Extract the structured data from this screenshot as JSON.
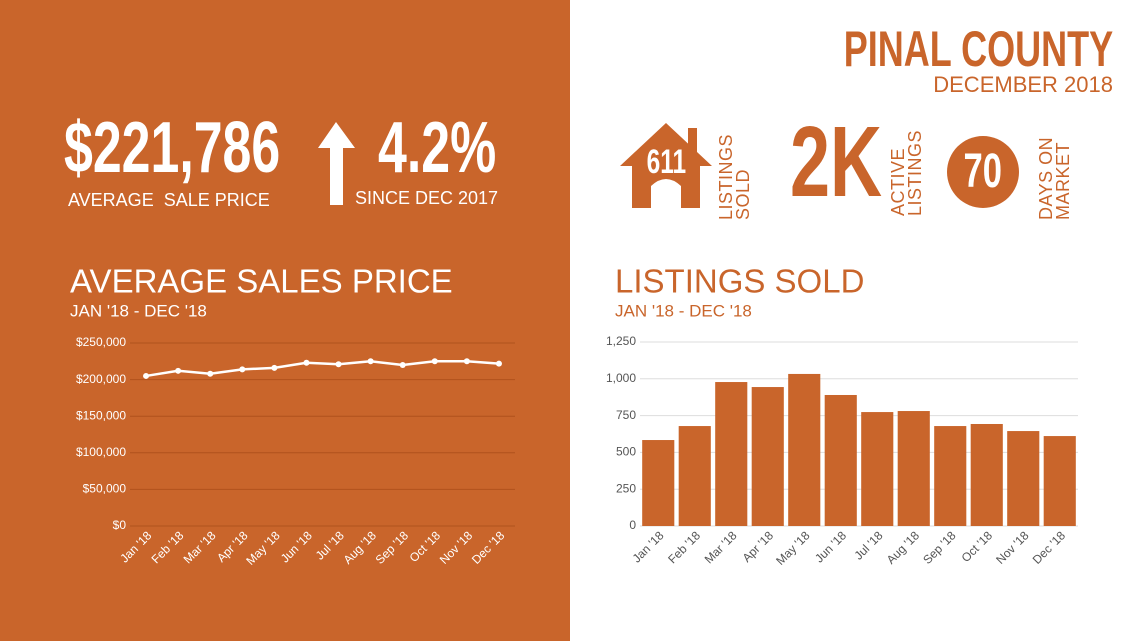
{
  "header": {
    "title": "PINAL COUNTY",
    "subtitle": "DECEMBER 2018"
  },
  "stats": {
    "avg_price": "$221,786",
    "avg_price_label": "AVERAGE  SALE PRICE",
    "change": "4.2%",
    "change_label": "SINCE DEC 2017",
    "listings_sold": "611",
    "listings_sold_label": "LISTINGS SOLD",
    "active": "2K",
    "active_label": "ACTIVE LISTINGS",
    "days": "70",
    "days_label": "DAYS ON MARKET"
  },
  "chart_data": [
    {
      "type": "line",
      "title": "AVERAGE SALES PRICE",
      "subtitle": "JAN '18 - DEC '18",
      "categories": [
        "Jan '18",
        "Feb '18",
        "Mar '18",
        "Apr '18",
        "May '18",
        "Jun '18",
        "Jul '18",
        "Aug '18",
        "Sep '18",
        "Oct '18",
        "Nov '18",
        "Dec '18"
      ],
      "values": [
        205000,
        212000,
        208000,
        214000,
        216000,
        223000,
        221000,
        225000,
        220000,
        225000,
        225000,
        221786
      ],
      "color": "#ffffff",
      "ylim": [
        0,
        250000
      ],
      "yticks": [
        {
          "value": 0,
          "label": "$0"
        },
        {
          "value": 50000,
          "label": "$50,000"
        },
        {
          "value": 100000,
          "label": "$100,000"
        },
        {
          "value": 150000,
          "label": "$150,000"
        },
        {
          "value": 200000,
          "label": "$200,000"
        },
        {
          "value": 250000,
          "label": "$250,000"
        }
      ],
      "grid": true
    },
    {
      "type": "bar",
      "title": "LISTINGS SOLD",
      "subtitle": "JAN '18 - DEC '18",
      "categories": [
        "Jan '18",
        "Feb '18",
        "Mar '18",
        "Apr '18",
        "May '18",
        "Jun '18",
        "Jul '18",
        "Aug '18",
        "Sep '18",
        "Oct '18",
        "Nov '18",
        "Dec '18"
      ],
      "values": [
        584,
        679,
        978,
        944,
        1033,
        890,
        774,
        781,
        679,
        693,
        645,
        611
      ],
      "color": "#c9652b",
      "ylim": [
        0,
        1250
      ],
      "yticks": [
        0,
        250,
        500,
        750,
        {
          "value": 1000,
          "label": "1,000"
        },
        {
          "value": 1250,
          "label": "1,250"
        }
      ],
      "grid": true
    }
  ]
}
